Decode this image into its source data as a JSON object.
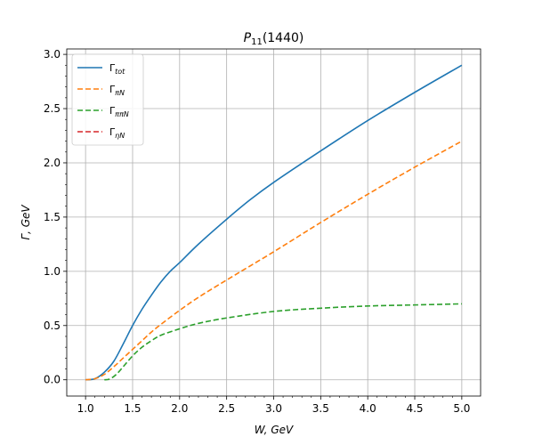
{
  "chart_data": {
    "type": "line",
    "title_main": "P",
    "title_sub": "11",
    "title_rest": "(1440)",
    "xlabel": "W, GeV",
    "ylabel": "Γ,  GeV",
    "xlim": [
      0.8,
      5.2
    ],
    "ylim": [
      -0.15,
      3.05
    ],
    "xticks": [
      1.0,
      1.5,
      2.0,
      2.5,
      3.0,
      3.5,
      4.0,
      4.5,
      5.0
    ],
    "xtick_labels": [
      "1.0",
      "1.5",
      "2.0",
      "2.5",
      "3.0",
      "3.5",
      "4.0",
      "4.5",
      "5.0"
    ],
    "yticks": [
      0.0,
      0.5,
      1.0,
      1.5,
      2.0,
      2.5,
      3.0
    ],
    "ytick_labels": [
      "0.0",
      "0.5",
      "1.0",
      "1.5",
      "2.0",
      "2.5",
      "3.0"
    ],
    "grid": true,
    "legend_position": "top-left",
    "series": [
      {
        "name": "Γ",
        "name_sub": "tot",
        "color": "#1f77b4",
        "dash": "solid",
        "x": [
          1.0,
          1.1,
          1.2,
          1.3,
          1.4,
          1.5,
          1.6,
          1.7,
          1.8,
          1.9,
          2.0,
          2.2,
          2.5,
          2.75,
          3.0,
          3.5,
          4.0,
          4.5,
          5.0
        ],
        "y": [
          0.0,
          0.01,
          0.07,
          0.17,
          0.33,
          0.5,
          0.65,
          0.78,
          0.9,
          1.0,
          1.08,
          1.25,
          1.48,
          1.66,
          1.82,
          2.11,
          2.39,
          2.65,
          2.9
        ]
      },
      {
        "name": "Γ",
        "name_sub": "πN",
        "color": "#ff7f0e",
        "dash": "dashed",
        "x": [
          1.0,
          1.1,
          1.2,
          1.3,
          1.4,
          1.5,
          1.6,
          1.7,
          1.8,
          2.0,
          2.2,
          2.5,
          3.0,
          3.5,
          4.0,
          4.5,
          5.0
        ],
        "y": [
          0.0,
          0.01,
          0.05,
          0.12,
          0.2,
          0.28,
          0.36,
          0.44,
          0.51,
          0.64,
          0.76,
          0.92,
          1.18,
          1.45,
          1.71,
          1.96,
          2.2
        ]
      },
      {
        "name": "Γ",
        "name_sub": "ππN",
        "color": "#2ca02c",
        "dash": "dashed",
        "x": [
          1.2,
          1.25,
          1.3,
          1.35,
          1.4,
          1.5,
          1.6,
          1.7,
          1.8,
          2.0,
          2.2,
          2.5,
          3.0,
          3.5,
          4.0,
          4.5,
          5.0
        ],
        "y": [
          0.0,
          0.005,
          0.03,
          0.07,
          0.12,
          0.22,
          0.3,
          0.36,
          0.41,
          0.47,
          0.52,
          0.57,
          0.63,
          0.66,
          0.68,
          0.69,
          0.7
        ]
      },
      {
        "name": "Γ",
        "name_sub": "ηN",
        "color": "#d62728",
        "dash": "dashed",
        "x": [],
        "y": []
      }
    ]
  }
}
